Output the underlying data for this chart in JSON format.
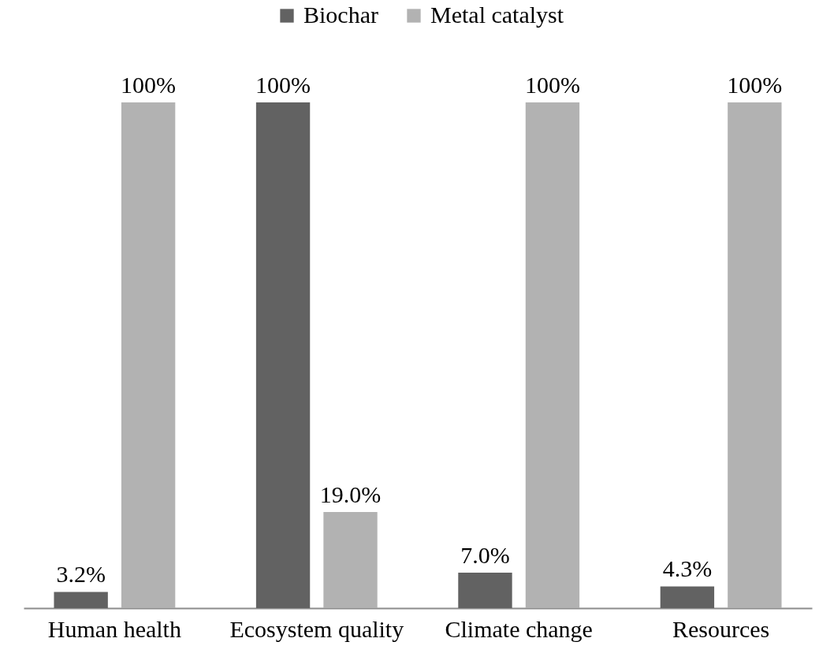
{
  "chart_data": {
    "type": "bar",
    "categories": [
      "Human health",
      "Ecosystem quality",
      "Climate change",
      "Resources"
    ],
    "series": [
      {
        "name": "Biochar",
        "color": "#626262",
        "values": [
          3.2,
          100,
          7.0,
          4.3
        ],
        "value_labels": [
          "3.2%",
          "100%",
          "7.0%",
          "4.3%"
        ]
      },
      {
        "name": "Metal catalyst",
        "color": "#b2b2b2",
        "values": [
          100,
          19.0,
          100,
          100
        ],
        "value_labels": [
          "100%",
          "19.0%",
          "100%",
          "100%"
        ]
      }
    ],
    "legend": "top"
  }
}
